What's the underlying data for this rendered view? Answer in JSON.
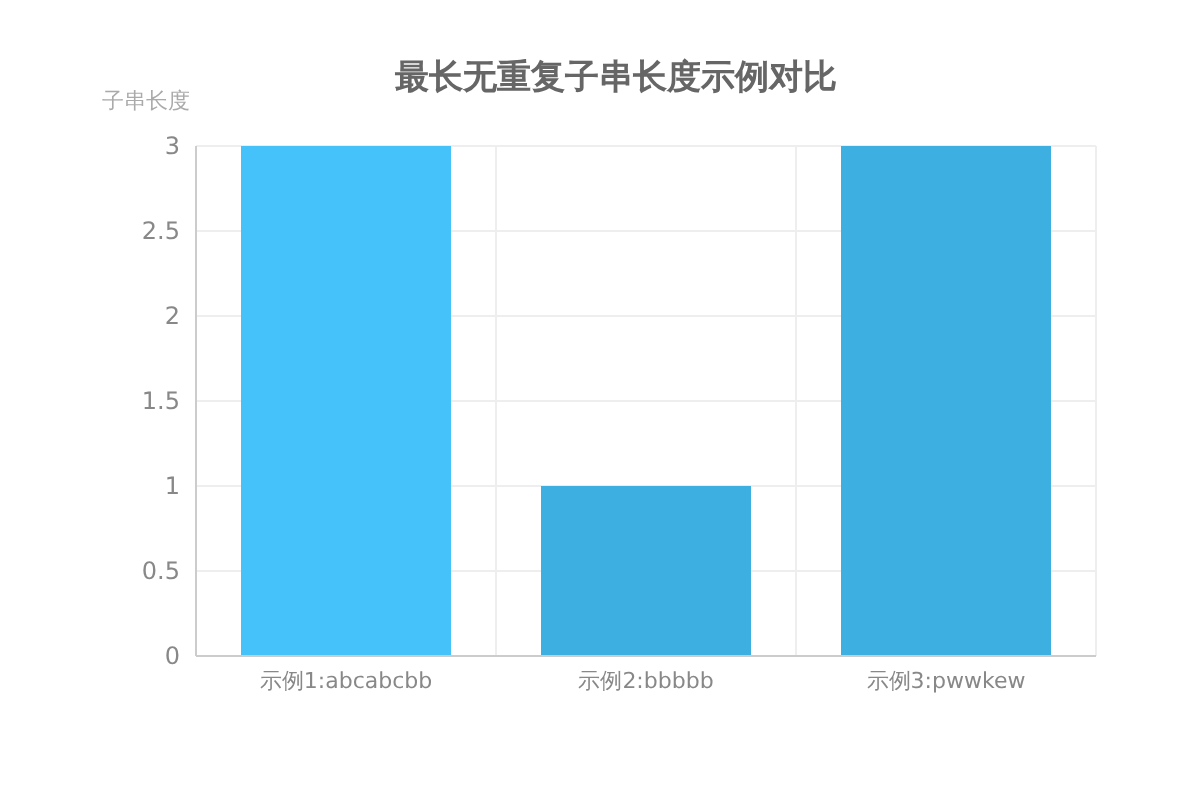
{
  "chart_data": {
    "type": "bar",
    "title": "最长无重复子串长度示例对比",
    "ylabel": "子串长度",
    "categories": [
      "示例1:abcabcbb",
      "示例2:bbbbb",
      "示例3:pwwkew"
    ],
    "values": [
      3,
      1,
      3
    ],
    "colors": [
      "#46c2fb",
      "#3eafe1",
      "#3eafe1"
    ],
    "ylim": [
      0,
      3
    ],
    "yticks": [
      0,
      0.5,
      1,
      1.5,
      2,
      2.5,
      3
    ],
    "grid": true
  }
}
